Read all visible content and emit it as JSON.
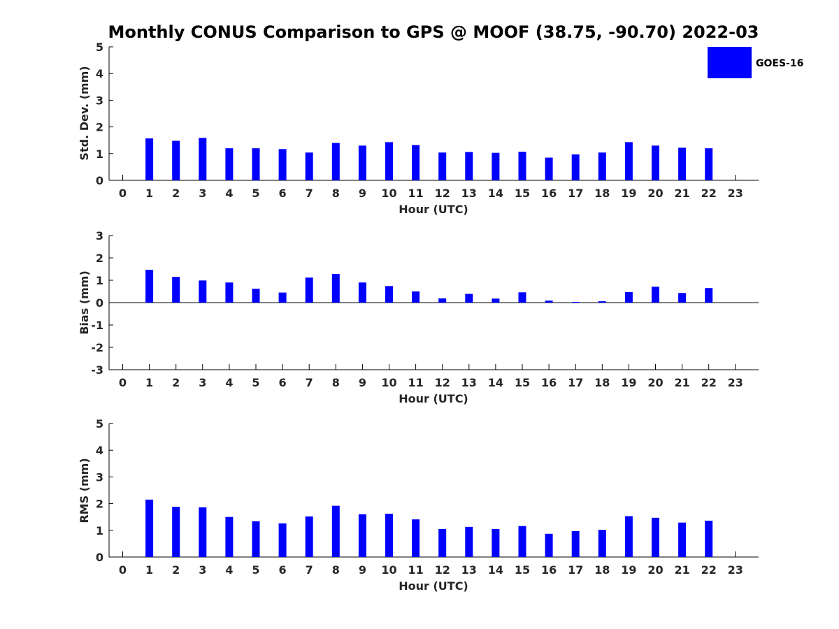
{
  "title": "Monthly CONUS Comparison to GPS @ MOOF (38.75, -90.70) 2022-03",
  "legend": {
    "label": "GOES-16",
    "color": "#0000ff",
    "placement": "top-right"
  },
  "chart_data": [
    {
      "type": "bar",
      "panel": "std",
      "ylabel": "Std. Dev. (mm)",
      "xlabel": "Hour (UTC)",
      "ylim": [
        0,
        5
      ],
      "yticks": [
        "0",
        "1",
        "2",
        "3",
        "4",
        "5"
      ],
      "categories": [
        "0",
        "1",
        "2",
        "3",
        "4",
        "5",
        "6",
        "7",
        "8",
        "9",
        "10",
        "11",
        "12",
        "13",
        "14",
        "15",
        "16",
        "17",
        "18",
        "19",
        "20",
        "21",
        "22",
        "23"
      ],
      "series": [
        {
          "name": "GOES-16",
          "values": [
            null,
            1.57,
            1.48,
            1.59,
            1.2,
            1.2,
            1.17,
            1.04,
            1.4,
            1.3,
            1.43,
            1.32,
            1.04,
            1.06,
            1.03,
            1.07,
            0.85,
            0.97,
            1.04,
            1.43,
            1.3,
            1.22,
            1.2,
            null
          ]
        }
      ]
    },
    {
      "type": "bar",
      "panel": "bias",
      "ylabel": "Bias (mm)",
      "xlabel": "Hour (UTC)",
      "ylim": [
        -3,
        3
      ],
      "yticks": [
        "-3",
        "-2",
        "-1",
        "0",
        "1",
        "2",
        "3"
      ],
      "categories": [
        "0",
        "1",
        "2",
        "3",
        "4",
        "5",
        "6",
        "7",
        "8",
        "9",
        "10",
        "11",
        "12",
        "13",
        "14",
        "15",
        "16",
        "17",
        "18",
        "19",
        "20",
        "21",
        "22",
        "23"
      ],
      "series": [
        {
          "name": "GOES-16",
          "values": [
            null,
            1.47,
            1.15,
            0.99,
            0.9,
            0.62,
            0.45,
            1.12,
            1.28,
            0.9,
            0.74,
            0.5,
            0.19,
            0.39,
            0.18,
            0.46,
            0.09,
            0.03,
            0.06,
            0.47,
            0.71,
            0.43,
            0.65,
            null
          ]
        }
      ]
    },
    {
      "type": "bar",
      "panel": "rms",
      "ylabel": "RMS (mm)",
      "xlabel": "Hour (UTC)",
      "ylim": [
        0,
        5
      ],
      "yticks": [
        "0",
        "1",
        "2",
        "3",
        "4",
        "5"
      ],
      "categories": [
        "0",
        "1",
        "2",
        "3",
        "4",
        "5",
        "6",
        "7",
        "8",
        "9",
        "10",
        "11",
        "12",
        "13",
        "14",
        "15",
        "16",
        "17",
        "18",
        "19",
        "20",
        "21",
        "22",
        "23"
      ],
      "series": [
        {
          "name": "GOES-16",
          "values": [
            null,
            2.15,
            1.88,
            1.86,
            1.5,
            1.34,
            1.26,
            1.52,
            1.92,
            1.6,
            1.62,
            1.41,
            1.05,
            1.13,
            1.05,
            1.16,
            0.87,
            0.97,
            1.02,
            1.53,
            1.47,
            1.29,
            1.36,
            null
          ]
        }
      ]
    }
  ]
}
